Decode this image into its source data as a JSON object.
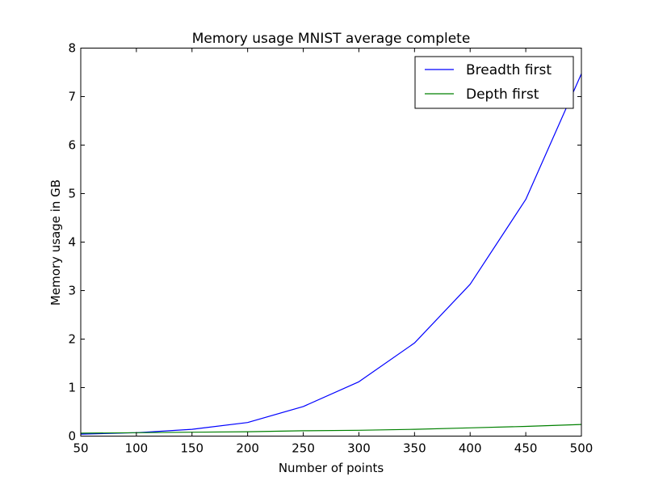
{
  "chart_data": {
    "type": "line",
    "title": "Memory usage MNIST average complete",
    "xlabel": "Number of points",
    "ylabel": "Memory usage in GB",
    "xlim": [
      50,
      500
    ],
    "ylim": [
      0,
      8
    ],
    "xticks": [
      50,
      100,
      150,
      200,
      250,
      300,
      350,
      400,
      450,
      500
    ],
    "yticks": [
      0,
      1,
      2,
      3,
      4,
      5,
      6,
      7,
      8
    ],
    "grid": false,
    "legend_position": "top-right",
    "x": [
      50,
      100,
      150,
      200,
      250,
      300,
      350,
      400,
      450,
      500
    ],
    "series": [
      {
        "name": "Breadth first",
        "color": "#0000ff",
        "values": [
          0.04,
          0.07,
          0.14,
          0.28,
          0.61,
          1.12,
          1.92,
          3.13,
          4.88,
          7.47
        ]
      },
      {
        "name": "Depth first",
        "color": "#008000",
        "values": [
          0.06,
          0.07,
          0.08,
          0.09,
          0.11,
          0.12,
          0.14,
          0.17,
          0.2,
          0.24
        ]
      }
    ]
  }
}
